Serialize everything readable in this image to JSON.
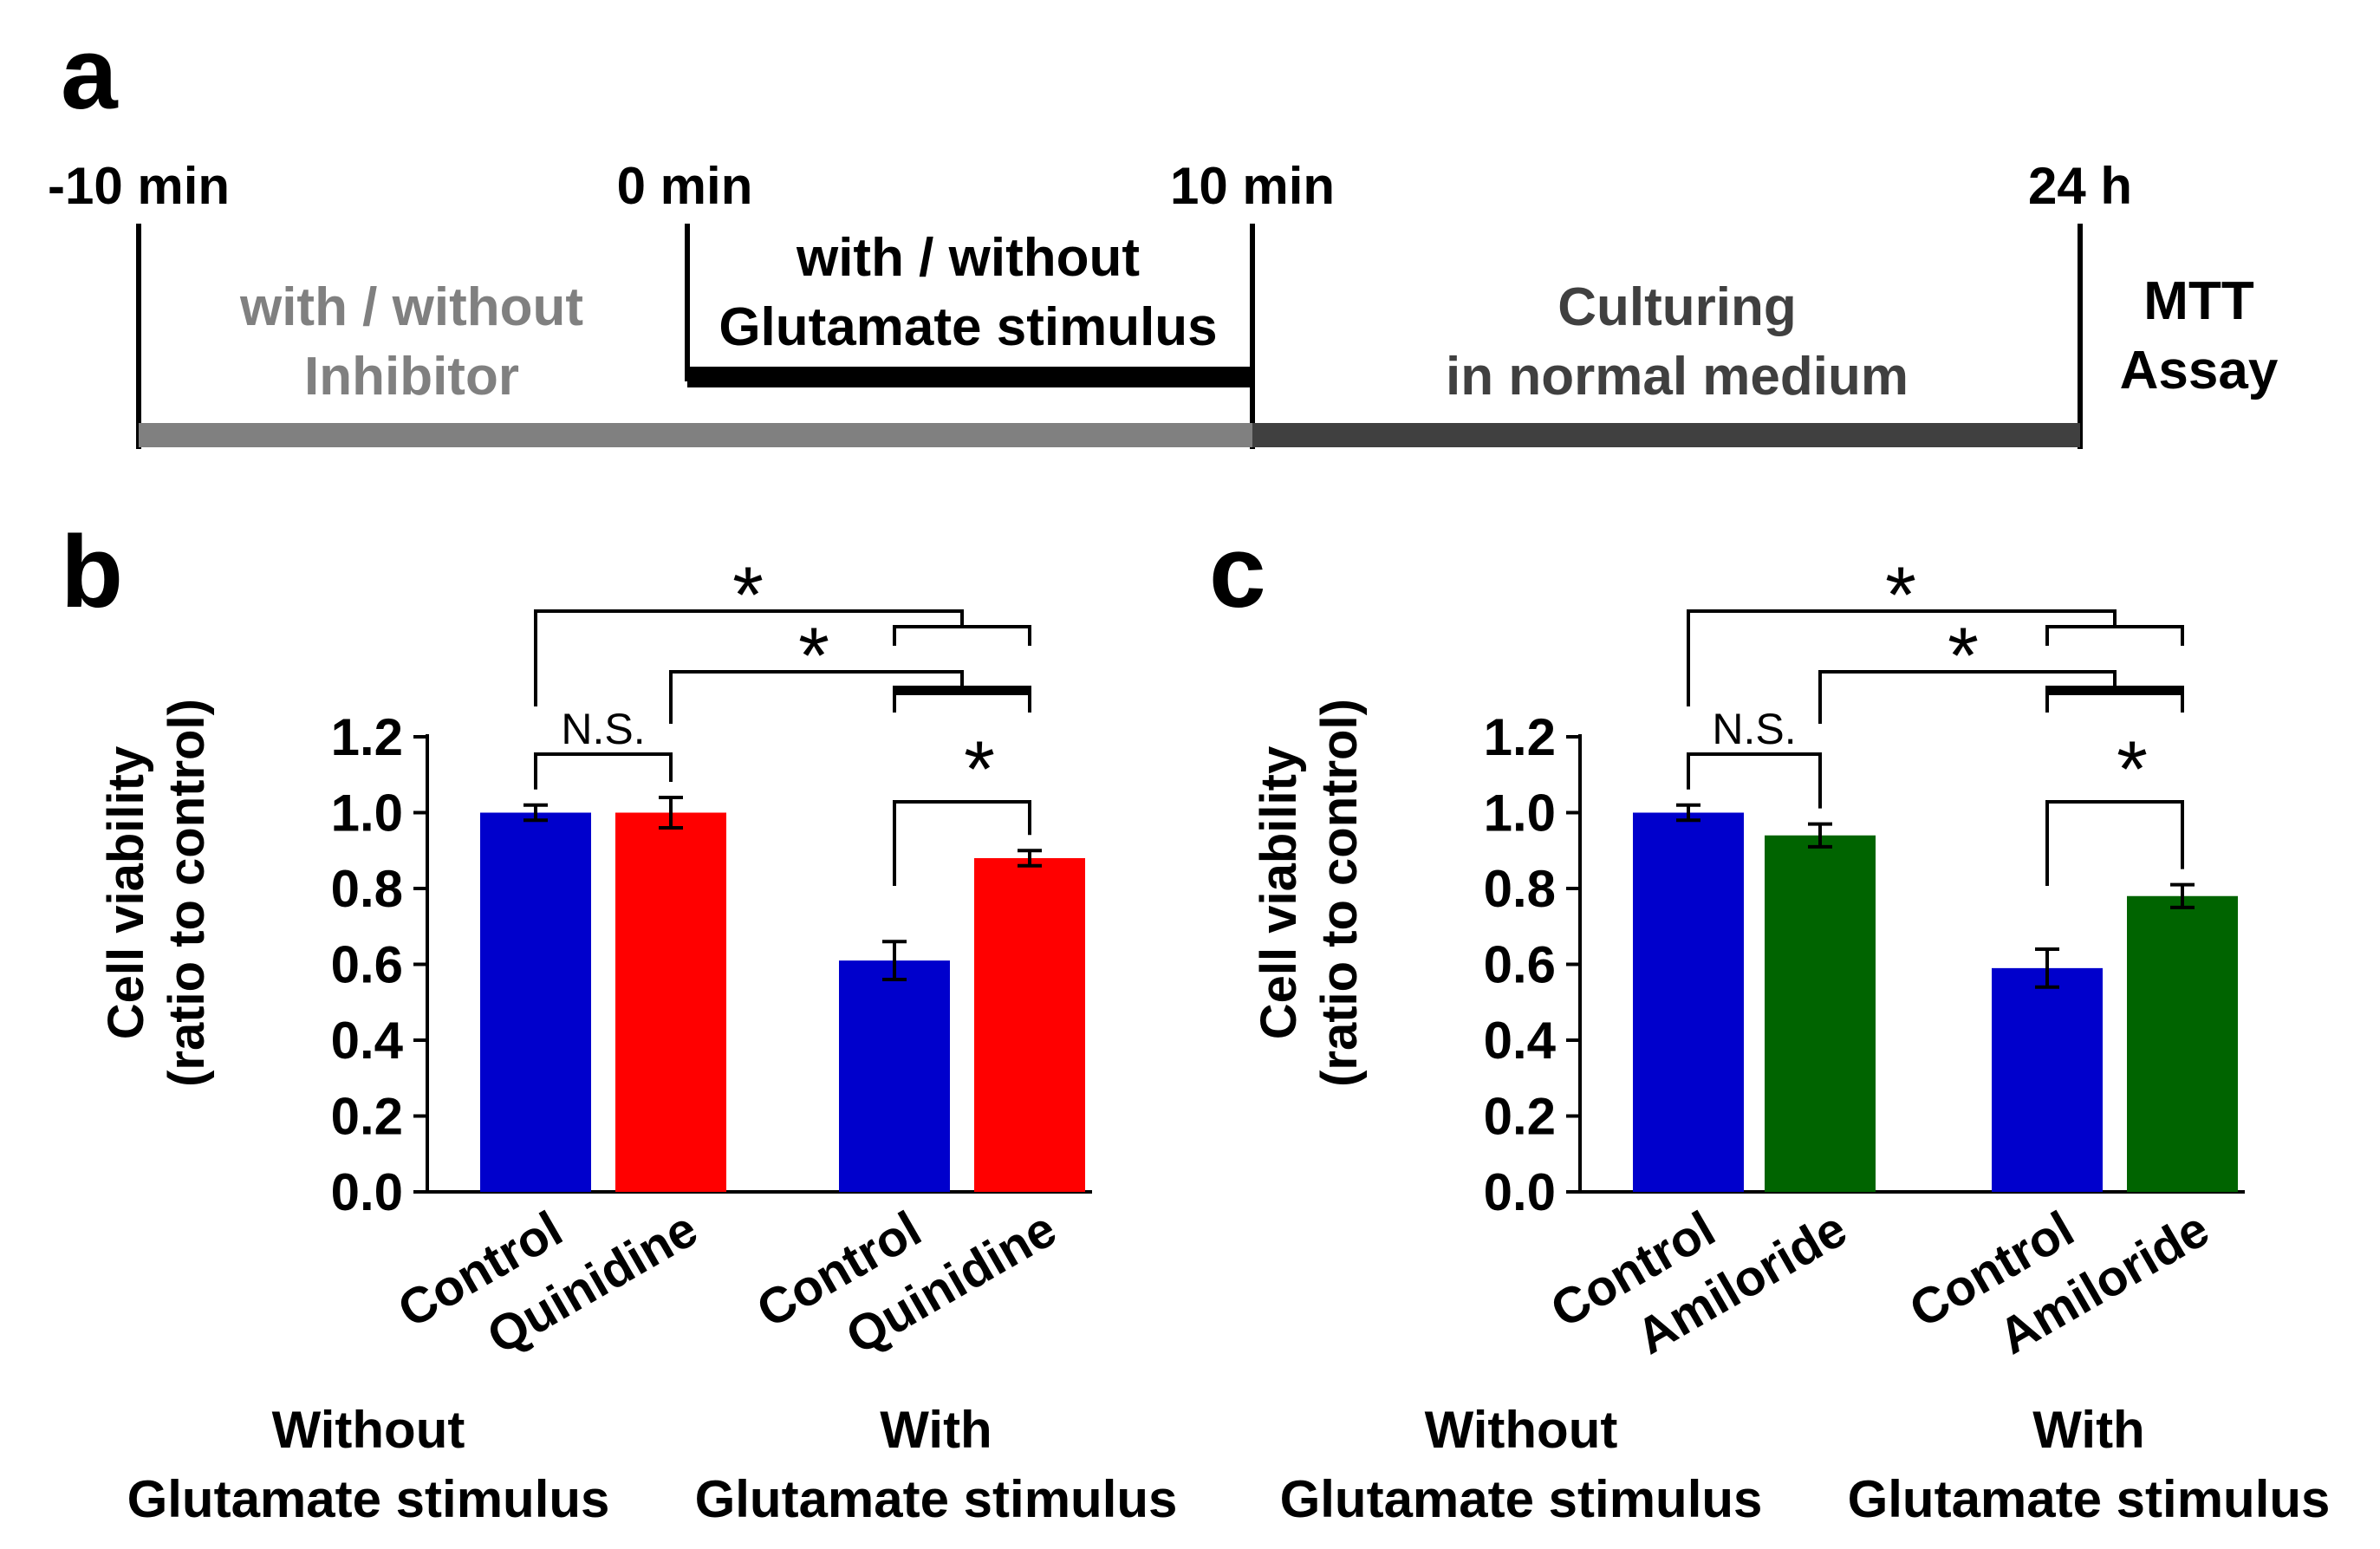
{
  "panel_a": {
    "letter": "a",
    "time_labels": [
      "-10 min",
      "0 min",
      "10 min",
      "24 h"
    ],
    "phases": {
      "inhibitor": [
        "with / without",
        "Inhibitor"
      ],
      "glutamate": [
        "with / without",
        "Glutamate stimulus"
      ],
      "culturing": [
        "Culturing",
        "in normal medium"
      ],
      "assay": [
        "MTT",
        "Assay"
      ]
    },
    "colors": {
      "inhibitor": "#808080",
      "glutamate": "#000000",
      "culturing": "#404040"
    }
  },
  "chart_data": [
    {
      "type": "bar",
      "panel": "b",
      "ylabel": [
        "Cell viability",
        "(ratio to control)"
      ],
      "ylim": [
        0,
        1.2
      ],
      "yticks": [
        "0.0",
        "0.2",
        "0.4",
        "0.6",
        "0.8",
        "1.0",
        "1.2"
      ],
      "categories": [
        "Control",
        "Quinidine",
        "Control",
        "Quinidine"
      ],
      "values": [
        1.0,
        1.0,
        0.61,
        0.88
      ],
      "errors": [
        0.02,
        0.04,
        0.05,
        0.02
      ],
      "colors": [
        "#0000cc",
        "#ff0000",
        "#0000cc",
        "#ff0000"
      ],
      "groups": [
        [
          "Without",
          "Glutamate stimulus"
        ],
        [
          "With",
          "Glutamate stimulus"
        ]
      ],
      "annotations": {
        "ns": "N.S.",
        "star": "*"
      }
    },
    {
      "type": "bar",
      "panel": "c",
      "ylabel": [
        "Cell viability",
        "(ratio to control)"
      ],
      "ylim": [
        0,
        1.2
      ],
      "yticks": [
        "0.0",
        "0.2",
        "0.4",
        "0.6",
        "0.8",
        "1.0",
        "1.2"
      ],
      "categories": [
        "Control",
        "Amiloride",
        "Control",
        "Amiloride"
      ],
      "values": [
        1.0,
        0.94,
        0.59,
        0.78
      ],
      "errors": [
        0.02,
        0.03,
        0.05,
        0.03
      ],
      "colors": [
        "#0000cc",
        "#006400",
        "#0000cc",
        "#006400"
      ],
      "groups": [
        [
          "Without",
          "Glutamate stimulus"
        ],
        [
          "With",
          "Glutamate stimulus"
        ]
      ],
      "annotations": {
        "ns": "N.S.",
        "star": "*"
      }
    }
  ]
}
